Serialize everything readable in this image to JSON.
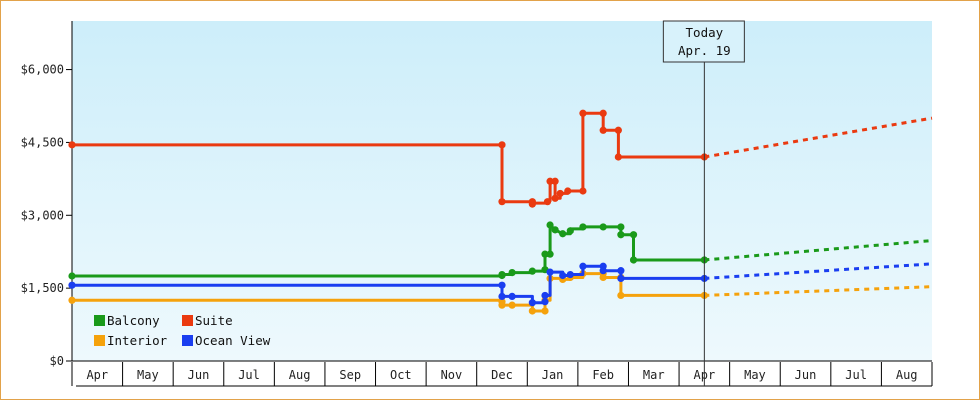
{
  "chart_data": {
    "type": "line",
    "x_labels": [
      "Apr",
      "May",
      "Jun",
      "Jul",
      "Aug",
      "Sep",
      "Oct",
      "Nov",
      "Dec",
      "Jan",
      "Feb",
      "Mar",
      "Apr",
      "May",
      "Jun",
      "Jul",
      "Aug"
    ],
    "y_ticks": [
      "$0",
      "$1,500",
      "$3,000",
      "$4,500",
      "$6,000"
    ],
    "y_tick_values": [
      0,
      1500,
      3000,
      4500,
      6000
    ],
    "ylim": [
      0,
      7000
    ],
    "xlim": [
      -0.5,
      16.5
    ],
    "today": {
      "line1": "Today",
      "line2": "Apr. 19",
      "x": 12
    },
    "series": [
      {
        "name": "Balcony",
        "color": "#1a9a1a",
        "steps": [
          [
            -0.5,
            1750
          ],
          [
            8.0,
            1750
          ],
          [
            8.0,
            1780
          ],
          [
            8.2,
            1780
          ],
          [
            8.2,
            1820
          ],
          [
            8.6,
            1820
          ],
          [
            8.6,
            1850
          ],
          [
            8.85,
            1850
          ],
          [
            8.85,
            2200
          ],
          [
            8.95,
            2200
          ],
          [
            8.95,
            2800
          ],
          [
            9.05,
            2700
          ],
          [
            9.2,
            2620
          ],
          [
            9.35,
            2620
          ],
          [
            9.35,
            2720
          ],
          [
            9.6,
            2720
          ],
          [
            9.6,
            2760
          ],
          [
            10.0,
            2760
          ],
          [
            10.0,
            2760
          ],
          [
            10.1,
            2760
          ],
          [
            10.1,
            2760
          ],
          [
            10.35,
            2760
          ],
          [
            10.35,
            2600
          ],
          [
            10.6,
            2600
          ],
          [
            10.6,
            2080
          ],
          [
            12.0,
            2080
          ]
        ],
        "markers": [
          [
            -0.5,
            1750
          ],
          [
            8.0,
            1760
          ],
          [
            8.0,
            1780
          ],
          [
            8.2,
            1820
          ],
          [
            8.6,
            1850
          ],
          [
            8.85,
            1880
          ],
          [
            8.85,
            2200
          ],
          [
            8.95,
            2200
          ],
          [
            8.95,
            2800
          ],
          [
            9.05,
            2700
          ],
          [
            9.2,
            2620
          ],
          [
            9.35,
            2680
          ],
          [
            9.6,
            2760
          ],
          [
            10.0,
            2760
          ],
          [
            10.35,
            2760
          ],
          [
            10.35,
            2600
          ],
          [
            10.6,
            2600
          ],
          [
            10.6,
            2080
          ],
          [
            12.0,
            2080
          ]
        ],
        "forecast": [
          [
            12.0,
            2080
          ],
          [
            16.5,
            2480
          ]
        ]
      },
      {
        "name": "Suite",
        "color": "#ea3a10",
        "steps": [
          [
            -0.5,
            4450
          ],
          [
            8.0,
            4450
          ],
          [
            8.0,
            3280
          ],
          [
            8.6,
            3280
          ],
          [
            8.6,
            3250
          ],
          [
            8.9,
            3250
          ],
          [
            8.9,
            3300
          ],
          [
            8.95,
            3300
          ],
          [
            8.95,
            3700
          ],
          [
            9.05,
            3700
          ],
          [
            9.05,
            3350
          ],
          [
            9.15,
            3350
          ],
          [
            9.15,
            3450
          ],
          [
            9.3,
            3450
          ],
          [
            9.3,
            3500
          ],
          [
            9.6,
            3500
          ],
          [
            9.6,
            5100
          ],
          [
            10.0,
            5100
          ],
          [
            10.0,
            4750
          ],
          [
            10.3,
            4750
          ],
          [
            10.3,
            4200
          ],
          [
            12.0,
            4200
          ]
        ],
        "markers": [
          [
            -0.5,
            4450
          ],
          [
            8.0,
            4450
          ],
          [
            8.0,
            3280
          ],
          [
            8.6,
            3280
          ],
          [
            8.6,
            3230
          ],
          [
            8.9,
            3280
          ],
          [
            8.95,
            3700
          ],
          [
            9.05,
            3700
          ],
          [
            9.05,
            3350
          ],
          [
            9.15,
            3450
          ],
          [
            9.3,
            3500
          ],
          [
            9.6,
            3500
          ],
          [
            9.6,
            5100
          ],
          [
            10.0,
            5100
          ],
          [
            10.0,
            4750
          ],
          [
            10.3,
            4750
          ],
          [
            10.3,
            4200
          ],
          [
            12.0,
            4200
          ]
        ],
        "forecast": [
          [
            12.0,
            4200
          ],
          [
            16.5,
            5000
          ]
        ]
      },
      {
        "name": "Interior",
        "color": "#f5a20c",
        "steps": [
          [
            -0.5,
            1250
          ],
          [
            8.0,
            1250
          ],
          [
            8.0,
            1150
          ],
          [
            8.2,
            1150
          ],
          [
            8.2,
            1150
          ],
          [
            8.6,
            1150
          ],
          [
            8.6,
            1030
          ],
          [
            8.85,
            1030
          ],
          [
            8.85,
            1250
          ],
          [
            8.95,
            1250
          ],
          [
            8.95,
            1700
          ],
          [
            9.2,
            1700
          ],
          [
            9.2,
            1680
          ],
          [
            9.35,
            1680
          ],
          [
            9.35,
            1720
          ],
          [
            9.6,
            1720
          ],
          [
            9.6,
            1800
          ],
          [
            10.0,
            1800
          ],
          [
            10.0,
            1720
          ],
          [
            10.35,
            1720
          ],
          [
            10.35,
            1350
          ],
          [
            12.0,
            1350
          ]
        ],
        "markers": [
          [
            -0.5,
            1250
          ],
          [
            8.0,
            1220
          ],
          [
            8.0,
            1150
          ],
          [
            8.2,
            1150
          ],
          [
            8.6,
            1030
          ],
          [
            8.85,
            1030
          ],
          [
            8.85,
            1250
          ],
          [
            8.95,
            1700
          ],
          [
            9.2,
            1680
          ],
          [
            9.35,
            1720
          ],
          [
            9.6,
            1800
          ],
          [
            10.0,
            1800
          ],
          [
            10.0,
            1720
          ],
          [
            10.35,
            1720
          ],
          [
            10.35,
            1350
          ],
          [
            12.0,
            1350
          ]
        ],
        "forecast": [
          [
            12.0,
            1350
          ],
          [
            16.5,
            1530
          ]
        ]
      },
      {
        "name": "Ocean View",
        "color": "#1a3ef0",
        "steps": [
          [
            -0.5,
            1560
          ],
          [
            8.0,
            1560
          ],
          [
            8.0,
            1330
          ],
          [
            8.2,
            1330
          ],
          [
            8.2,
            1330
          ],
          [
            8.6,
            1330
          ],
          [
            8.6,
            1200
          ],
          [
            8.85,
            1200
          ],
          [
            8.85,
            1350
          ],
          [
            8.95,
            1350
          ],
          [
            8.95,
            1830
          ],
          [
            9.2,
            1830
          ],
          [
            9.2,
            1760
          ],
          [
            9.35,
            1760
          ],
          [
            9.35,
            1780
          ],
          [
            9.6,
            1780
          ],
          [
            9.6,
            1950
          ],
          [
            10.0,
            1950
          ],
          [
            10.0,
            1860
          ],
          [
            10.35,
            1860
          ],
          [
            10.35,
            1700
          ],
          [
            12.0,
            1700
          ]
        ],
        "markers": [
          [
            -0.5,
            1560
          ],
          [
            8.0,
            1560
          ],
          [
            8.0,
            1330
          ],
          [
            8.2,
            1330
          ],
          [
            8.6,
            1200
          ],
          [
            8.85,
            1220
          ],
          [
            8.85,
            1350
          ],
          [
            8.95,
            1830
          ],
          [
            9.2,
            1760
          ],
          [
            9.35,
            1780
          ],
          [
            9.6,
            1950
          ],
          [
            10.0,
            1950
          ],
          [
            10.0,
            1860
          ],
          [
            10.35,
            1860
          ],
          [
            10.35,
            1700
          ],
          [
            12.0,
            1700
          ]
        ],
        "forecast": [
          [
            12.0,
            1700
          ],
          [
            16.5,
            2000
          ]
        ]
      }
    ],
    "legend": [
      {
        "name": "Balcony",
        "color": "#1a9a1a"
      },
      {
        "name": "Suite",
        "color": "#ea3a10"
      },
      {
        "name": "Interior",
        "color": "#f5a20c"
      },
      {
        "name": "Ocean View",
        "color": "#1a3ef0"
      }
    ]
  }
}
